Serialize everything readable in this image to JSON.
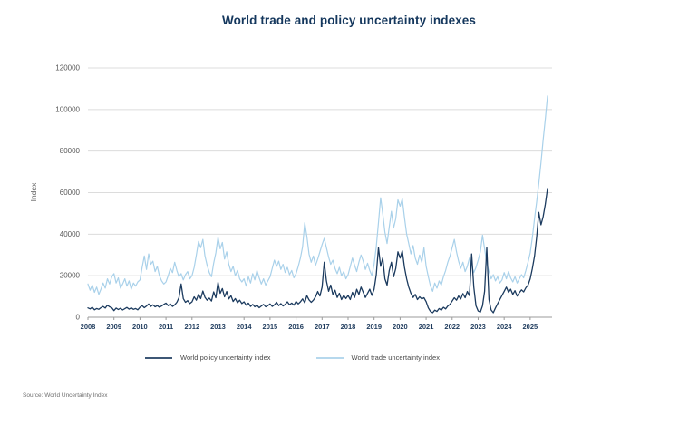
{
  "chart_data": {
    "type": "line",
    "title": "World trade and policy uncertainty indexes",
    "xlabel": "",
    "ylabel": "Index",
    "source": "Source: World Uncertainty Index",
    "frequency": "monthly",
    "x_start": "2008-01",
    "x_end": "2025-09",
    "x_tick_labels": [
      "2008",
      "2009",
      "2010",
      "2011",
      "2012",
      "2013",
      "2014",
      "2015",
      "2016",
      "2017",
      "2018",
      "2019",
      "2020",
      "2021",
      "2022",
      "2023",
      "2024",
      "2025"
    ],
    "y_ticks": [
      0,
      20000,
      40000,
      60000,
      80000,
      100000,
      120000
    ],
    "ylim": [
      0,
      120000
    ],
    "grid": "horizontal",
    "legend_position": "bottom",
    "series": [
      {
        "name": "World policy uncertainty index",
        "color": "#1b3a5e",
        "values": [
          4500,
          4000,
          4800,
          3600,
          4200,
          3800,
          4600,
          5200,
          4400,
          5800,
          5000,
          4600,
          3200,
          4400,
          3700,
          4300,
          3500,
          4100,
          4700,
          3900,
          4500,
          3800,
          4200,
          3600,
          4800,
          5600,
          4600,
          5400,
          6400,
          5200,
          6000,
          5000,
          5600,
          4800,
          5400,
          6200,
          6800,
          5600,
          6400,
          5200,
          6000,
          7200,
          9400,
          16000,
          9000,
          7200,
          8000,
          6600,
          7400,
          9800,
          8200,
          11000,
          9000,
          12600,
          9600,
          8200,
          9200,
          7800,
          12200,
          9400,
          16800,
          11500,
          13800,
          9800,
          12400,
          8800,
          10400,
          7600,
          9000,
          7000,
          8200,
          6600,
          7400,
          5800,
          6800,
          5200,
          6200,
          5000,
          5800,
          4600,
          5400,
          6200,
          5000,
          5600,
          6400,
          5200,
          6000,
          7200,
          5600,
          6600,
          5400,
          6200,
          7400,
          6000,
          6800,
          5800,
          7600,
          6400,
          7400,
          8800,
          7000,
          10400,
          8400,
          7200,
          8200,
          9800,
          12400,
          10200,
          14500,
          26500,
          17500,
          12500,
          15500,
          11000,
          13000,
          9500,
          11500,
          8500,
          10500,
          9000,
          10500,
          8500,
          12000,
          9500,
          13500,
          11000,
          14500,
          12000,
          9500,
          11500,
          13500,
          10500,
          13500,
          20500,
          33500,
          24500,
          28500,
          18500,
          15500,
          22500,
          26500,
          19500,
          23500,
          31500,
          28500,
          32000,
          24000,
          18500,
          14500,
          11500,
          9500,
          11000,
          8500,
          9800,
          8800,
          9400,
          7500,
          4500,
          2800,
          2200,
          3400,
          2800,
          4200,
          3400,
          4800,
          4000,
          5400,
          6200,
          7800,
          9400,
          8200,
          10200,
          8800,
          11400,
          9400,
          12400,
          10400,
          30500,
          14500,
          5500,
          3000,
          2500,
          5500,
          12500,
          33500,
          8500,
          3500,
          2200,
          4500,
          6500,
          8500,
          10500,
          12500,
          14500,
          12000,
          13500,
          11000,
          12800,
          10200,
          11800,
          13200,
          12200,
          14200,
          15500,
          18500,
          23500,
          29500,
          38500,
          50500,
          44500,
          48500,
          54500,
          62000
        ]
      },
      {
        "name": "World trade uncertainty index",
        "color": "#a9d1ea",
        "values": [
          16000,
          13000,
          15500,
          12000,
          14500,
          11000,
          13500,
          16500,
          14000,
          18500,
          16000,
          19500,
          21000,
          16500,
          19000,
          14000,
          16000,
          18500,
          15000,
          17500,
          13500,
          16500,
          15000,
          17000,
          18000,
          24000,
          29500,
          23000,
          30500,
          25500,
          27000,
          22000,
          24500,
          20000,
          17500,
          16000,
          17000,
          20000,
          23500,
          21500,
          26500,
          22500,
          19500,
          21000,
          18000,
          20500,
          22000,
          18500,
          20000,
          24000,
          30000,
          36500,
          33500,
          37500,
          29500,
          25000,
          21500,
          19500,
          26000,
          31000,
          38500,
          33000,
          36000,
          28000,
          31500,
          25500,
          22000,
          24500,
          20000,
          22500,
          18500,
          17000,
          18500,
          15000,
          19500,
          16500,
          21000,
          18000,
          22500,
          19000,
          16000,
          18500,
          15500,
          17500,
          19500,
          23500,
          27500,
          24500,
          27000,
          23000,
          25500,
          21500,
          24000,
          20500,
          22500,
          19000,
          21000,
          24500,
          28500,
          34000,
          45500,
          39000,
          30500,
          26500,
          29500,
          25000,
          28000,
          31500,
          35000,
          38000,
          33500,
          29000,
          25500,
          27500,
          23500,
          21000,
          24000,
          20000,
          22000,
          18500,
          20500,
          24500,
          28500,
          25000,
          22000,
          26500,
          30000,
          27000,
          23000,
          26000,
          22500,
          20000,
          25500,
          34000,
          45500,
          57500,
          50000,
          41000,
          35500,
          43500,
          51000,
          43000,
          47500,
          56500,
          53500,
          57000,
          48000,
          40000,
          35500,
          30500,
          34500,
          28500,
          25500,
          30000,
          26500,
          33500,
          24500,
          19500,
          15000,
          12500,
          16500,
          14000,
          17500,
          15500,
          19500,
          22500,
          26500,
          29500,
          33500,
          37500,
          31500,
          27000,
          23500,
          26500,
          22000,
          24500,
          28500,
          25000,
          21500,
          24000,
          27500,
          31500,
          39500,
          33000,
          26000,
          22000,
          18500,
          20500,
          17500,
          19500,
          16500,
          18000,
          21500,
          18500,
          22000,
          19000,
          17000,
          19500,
          16500,
          18500,
          20500,
          19000,
          22500,
          26500,
          31000,
          38500,
          47500,
          55500,
          64500,
          74500,
          85500,
          95500,
          106500
        ]
      }
    ]
  }
}
